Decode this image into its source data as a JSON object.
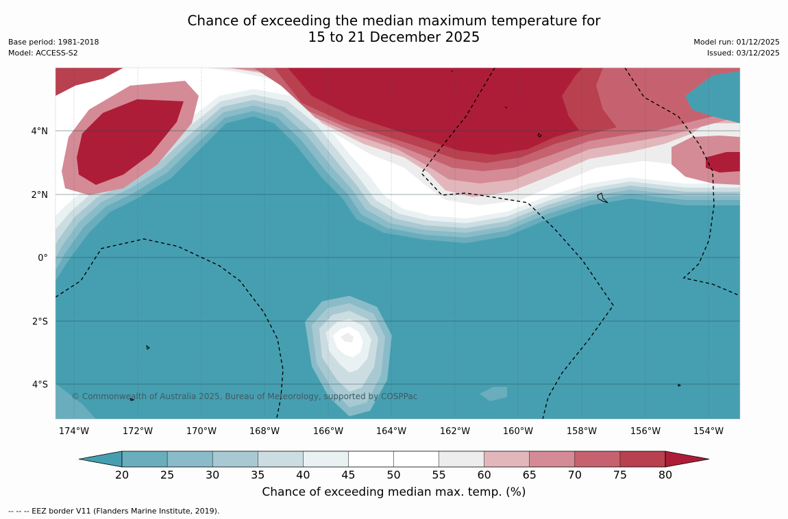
{
  "title_line1": "Chance of exceeding the median maximum temperature for",
  "title_line2": "15 to 21 December 2025",
  "base_period": "Base period: 1981-2018",
  "model": "Model: ACCESS-S2",
  "model_run": "Model run: 01/12/2025",
  "issued": "Issued: 03/12/2025",
  "lon_labels": [
    "174°W",
    "172°W",
    "170°W",
    "168°W",
    "166°W",
    "164°W",
    "162°W",
    "160°W",
    "158°W",
    "156°W",
    "154°W"
  ],
  "lat_labels": [
    "4°N",
    "2°N",
    "0°",
    "2°S",
    "4°S"
  ],
  "copyright": "© Commonwealth of Australia 2025, Bureau of Meteorology, supported by COSPPac",
  "colorbar": {
    "ticks": [
      "20",
      "25",
      "30",
      "35",
      "40",
      "45",
      "50",
      "55",
      "60",
      "65",
      "70",
      "75",
      "80"
    ],
    "colors": [
      "#469fb1",
      "#6aadbd",
      "#89bcc8",
      "#a9c9d2",
      "#ccdde2",
      "#eaf1f3",
      "#ffffff",
      "#ffffff",
      "#eeeded",
      "#e2b7bc",
      "#d48b96",
      "#c6626f",
      "#b8404f",
      "#ae1d38"
    ],
    "label": "Chance of exceeding median max. temp. (%)"
  },
  "footnote": "--  --  -- EEZ border V11 (Flanders Marine Institute, 2019)."
}
